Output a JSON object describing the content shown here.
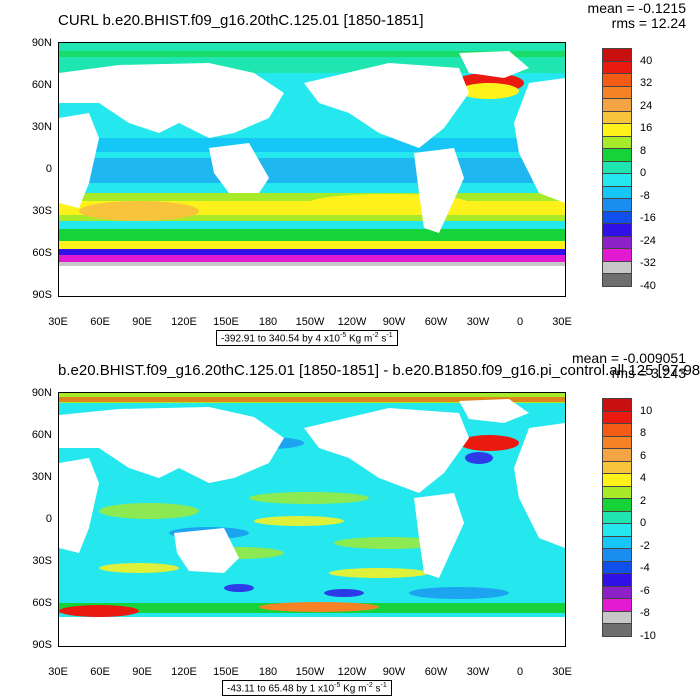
{
  "colors": {
    "scale": [
      "#6e6e6e",
      "#c7c7c7",
      "#e21ad2",
      "#8b21c6",
      "#3010e6",
      "#1250ee",
      "#1a8ef0",
      "#16c6f6",
      "#25e8ee",
      "#1fe6b0",
      "#16d33a",
      "#a6ea2a",
      "#fff21a",
      "#f8c43c",
      "#f4a444",
      "#f58326",
      "#f45c16",
      "#ea1a10",
      "#c81010"
    ],
    "land": "#ffffff"
  },
  "panels": [
    {
      "title": "CURL b.e20.BHIST.f09_g16.20thC.125.01 [1850-1851]",
      "mean": "mean = -0.1215",
      "rms": "rms = 12.24",
      "range_text": "-392.91 to 340.54 by 4 x10",
      "range_exp": "-5",
      "range_units": " Kg m",
      "range_exp2": "-2",
      "range_tail": " s",
      "range_exp3": "-1",
      "colorbar_labels": [
        "40",
        "32",
        "24",
        "16",
        "8",
        "0",
        "-8",
        "-16",
        "-24",
        "-32",
        "-40"
      ],
      "lat_labels": [
        "90N",
        "60N",
        "30N",
        "0",
        "30S",
        "60S",
        "90S"
      ],
      "lon_labels": [
        "30E",
        "60E",
        "90E",
        "120E",
        "150E",
        "180",
        "150W",
        "120W",
        "90W",
        "60W",
        "30W",
        "0",
        "30E"
      ]
    },
    {
      "title": "b.e20.BHIST.f09_g16.20thC.125.01 [1850-1851] - b.e20.B1850.f09_g16.pi_control.all.125 [97-98]",
      "mean": "mean = -0.009051",
      "rms": "rms = 3.243",
      "range_text": "-43.11 to 65.48 by 1 x10",
      "range_exp": "-5",
      "range_units": " Kg m",
      "range_exp2": "-2",
      "range_tail": " s",
      "range_exp3": "-1",
      "colorbar_labels": [
        "10",
        "8",
        "6",
        "4",
        "2",
        "0",
        "-2",
        "-4",
        "-6",
        "-8",
        "-10"
      ],
      "lat_labels": [
        "90N",
        "60N",
        "30N",
        "0",
        "30S",
        "60S",
        "90S"
      ],
      "lon_labels": [
        "30E",
        "60E",
        "90E",
        "120E",
        "150E",
        "180",
        "150W",
        "120W",
        "90W",
        "60W",
        "30W",
        "0",
        "30E"
      ]
    }
  ]
}
